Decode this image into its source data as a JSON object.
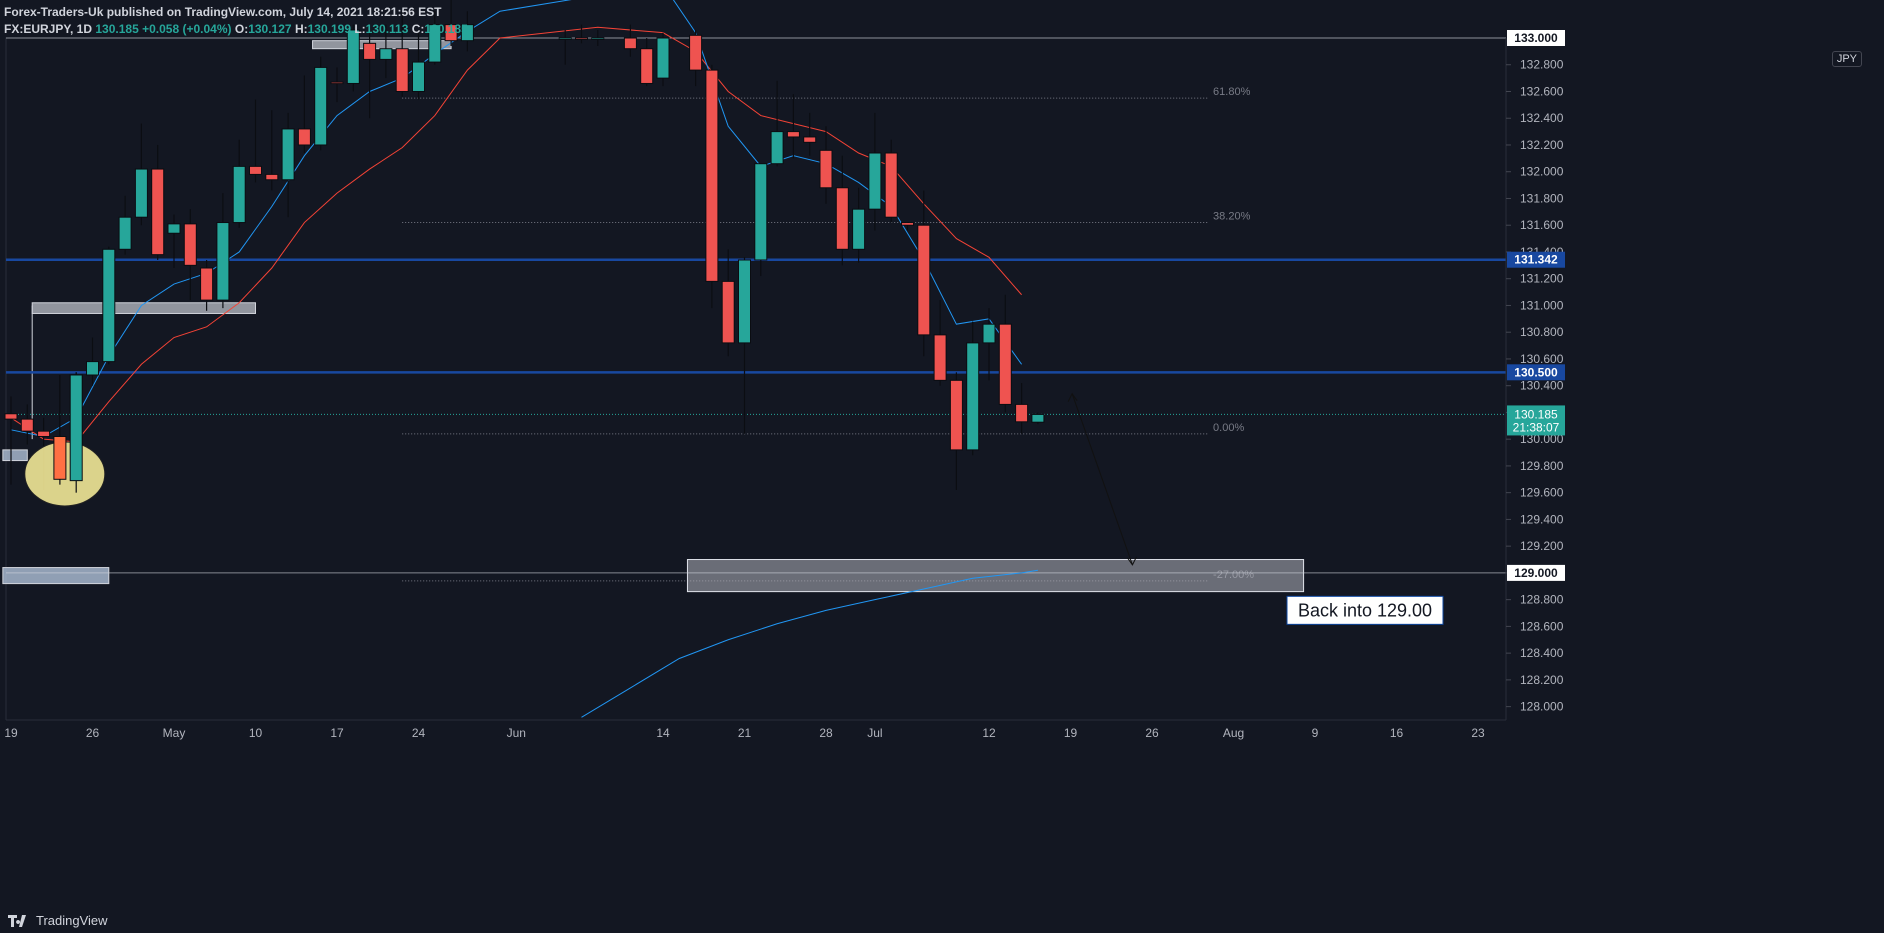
{
  "header": {
    "line1": "Forex-Traders-Uk published on TradingView.com, July 14, 2021 18:21:56 EST",
    "symbol": "FX:EURJPY, 1D",
    "last": "130.185",
    "change": "+0.058 (+0.04%)",
    "o_label": "O:",
    "o": "130.127",
    "h_label": "H:",
    "h": "130.199",
    "l_label": "L:",
    "l": "130.113",
    "c_label": "C:",
    "c": "130.185"
  },
  "currency_badge": "JPY",
  "footer": {
    "brand": "TradingView"
  },
  "colors": {
    "bg": "#131722",
    "up": "#26a69a",
    "down": "#ef5350",
    "grid": "#2a2e39",
    "ema_fast": "#2196f3",
    "ema_slow": "#f44336",
    "sma_long": "#2196f3",
    "level": "#0d47a1",
    "zone": "#b2b5be"
  },
  "chart_data": {
    "type": "candlestick",
    "symbol": "FX:EURJPY",
    "timeframe": "1D",
    "ylim": [
      127.9,
      133.0
    ],
    "y_ticks": [
      "128.000",
      "128.200",
      "128.400",
      "128.600",
      "128.800",
      "129.000",
      "129.200",
      "129.400",
      "129.600",
      "129.800",
      "130.000",
      "130.200",
      "130.400",
      "130.600",
      "130.800",
      "131.000",
      "131.200",
      "131.400",
      "131.600",
      "131.800",
      "132.000",
      "132.200",
      "132.400",
      "132.600",
      "132.800"
    ],
    "x_labels": [
      {
        "i": 0,
        "label": "19"
      },
      {
        "i": 5,
        "label": "26"
      },
      {
        "i": 10,
        "label": "May"
      },
      {
        "i": 15,
        "label": "10"
      },
      {
        "i": 20,
        "label": "17"
      },
      {
        "i": 25,
        "label": "24"
      },
      {
        "i": 31,
        "label": "Jun"
      },
      {
        "i": 40,
        "label": "14"
      },
      {
        "i": 45,
        "label": "21"
      },
      {
        "i": 50,
        "label": "28"
      },
      {
        "i": 53,
        "label": "Jul"
      },
      {
        "i": 60,
        "label": "12"
      },
      {
        "i": 65,
        "label": "19"
      },
      {
        "i": 70,
        "label": "26"
      },
      {
        "i": 75,
        "label": "Aug"
      },
      {
        "i": 80,
        "label": "9"
      },
      {
        "i": 85,
        "label": "16"
      },
      {
        "i": 90,
        "label": "23"
      }
    ],
    "candles": [
      {
        "i": 0,
        "o": 130.19,
        "h": 130.32,
        "l": 129.66,
        "c": 130.15
      },
      {
        "i": 1,
        "o": 130.15,
        "h": 130.26,
        "l": 129.96,
        "c": 130.06
      },
      {
        "i": 2,
        "o": 130.06,
        "h": 130.16,
        "l": 129.62,
        "c": 130.02
      },
      {
        "i": 3,
        "o": 130.02,
        "h": 130.48,
        "l": 129.66,
        "c": 129.7
      },
      {
        "i": 4,
        "o": 129.69,
        "h": 130.5,
        "l": 129.6,
        "c": 130.48
      },
      {
        "i": 5,
        "o": 130.48,
        "h": 130.76,
        "l": 130.4,
        "c": 130.58
      },
      {
        "i": 6,
        "o": 130.58,
        "h": 131.44,
        "l": 130.56,
        "c": 131.42
      },
      {
        "i": 7,
        "o": 131.42,
        "h": 131.82,
        "l": 131.38,
        "c": 131.66
      },
      {
        "i": 8,
        "o": 131.66,
        "h": 132.36,
        "l": 131.6,
        "c": 132.02
      },
      {
        "i": 9,
        "o": 132.02,
        "h": 132.2,
        "l": 131.34,
        "c": 131.38
      },
      {
        "i": 10,
        "o": 131.54,
        "h": 131.68,
        "l": 131.28,
        "c": 131.61
      },
      {
        "i": 11,
        "o": 131.61,
        "h": 131.72,
        "l": 131.04,
        "c": 131.3
      },
      {
        "i": 12,
        "o": 131.28,
        "h": 131.34,
        "l": 130.96,
        "c": 131.04
      },
      {
        "i": 13,
        "o": 131.04,
        "h": 131.84,
        "l": 130.98,
        "c": 131.62
      },
      {
        "i": 14,
        "o": 131.62,
        "h": 132.24,
        "l": 131.58,
        "c": 132.04
      },
      {
        "i": 15,
        "o": 132.04,
        "h": 132.54,
        "l": 131.92,
        "c": 131.98
      },
      {
        "i": 16,
        "o": 131.98,
        "h": 132.46,
        "l": 131.86,
        "c": 131.94
      },
      {
        "i": 17,
        "o": 131.94,
        "h": 132.44,
        "l": 131.66,
        "c": 132.32
      },
      {
        "i": 18,
        "o": 132.32,
        "h": 132.72,
        "l": 132.14,
        "c": 132.2
      },
      {
        "i": 19,
        "o": 132.2,
        "h": 132.86,
        "l": 132.16,
        "c": 132.78
      },
      {
        "i": 20,
        "o": 132.67,
        "h": 132.78,
        "l": 132.52,
        "c": 132.66
      },
      {
        "i": 21,
        "o": 132.66,
        "h": 133.1,
        "l": 132.6,
        "c": 133.06
      },
      {
        "i": 22,
        "o": 132.96,
        "h": 133.1,
        "l": 132.4,
        "c": 132.84
      },
      {
        "i": 23,
        "o": 132.84,
        "h": 133.1,
        "l": 132.7,
        "c": 132.92
      },
      {
        "i": 24,
        "o": 132.92,
        "h": 133.2,
        "l": 132.56,
        "c": 132.6
      },
      {
        "i": 25,
        "o": 132.6,
        "h": 133.06,
        "l": 132.54,
        "c": 132.82
      },
      {
        "i": 26,
        "o": 132.82,
        "h": 133.2,
        "l": 132.8,
        "c": 133.1
      },
      {
        "i": 27,
        "o": 133.1,
        "h": 133.3,
        "l": 132.94,
        "c": 132.98
      },
      {
        "i": 28,
        "o": 132.98,
        "h": 133.2,
        "l": 132.9,
        "c": 133.1
      },
      {
        "i": 34,
        "o": 132.99,
        "h": 133.06,
        "l": 132.8,
        "c": 133.0
      },
      {
        "i": 35,
        "o": 133.0,
        "h": 133.1,
        "l": 132.96,
        "c": 132.99
      },
      {
        "i": 36,
        "o": 132.99,
        "h": 133.06,
        "l": 132.94,
        "c": 133.0
      },
      {
        "i": 38,
        "o": 133.0,
        "h": 133.1,
        "l": 132.86,
        "c": 132.92
      },
      {
        "i": 39,
        "o": 132.92,
        "h": 133.0,
        "l": 132.64,
        "c": 132.66
      },
      {
        "i": 40,
        "o": 132.7,
        "h": 133.04,
        "l": 132.64,
        "c": 133.0
      },
      {
        "i": 42,
        "o": 133.02,
        "h": 133.06,
        "l": 132.64,
        "c": 132.76
      },
      {
        "i": 43,
        "o": 132.76,
        "h": 132.8,
        "l": 130.98,
        "c": 131.18
      },
      {
        "i": 44,
        "o": 131.18,
        "h": 131.42,
        "l": 130.62,
        "c": 130.72
      },
      {
        "i": 45,
        "o": 130.72,
        "h": 131.36,
        "l": 130.04,
        "c": 131.34
      },
      {
        "i": 46,
        "o": 131.34,
        "h": 132.06,
        "l": 131.22,
        "c": 132.06
      },
      {
        "i": 47,
        "o": 132.06,
        "h": 132.68,
        "l": 132.04,
        "c": 132.3
      },
      {
        "i": 48,
        "o": 132.3,
        "h": 132.58,
        "l": 132.1,
        "c": 132.26
      },
      {
        "i": 49,
        "o": 132.26,
        "h": 132.44,
        "l": 132.12,
        "c": 132.22
      },
      {
        "i": 50,
        "o": 132.16,
        "h": 132.34,
        "l": 131.76,
        "c": 131.88
      },
      {
        "i": 51,
        "o": 131.88,
        "h": 132.12,
        "l": 131.3,
        "c": 131.42
      },
      {
        "i": 52,
        "o": 131.42,
        "h": 131.88,
        "l": 131.32,
        "c": 131.72
      },
      {
        "i": 53,
        "o": 131.72,
        "h": 132.44,
        "l": 131.56,
        "c": 132.14
      },
      {
        "i": 54,
        "o": 132.14,
        "h": 132.24,
        "l": 131.62,
        "c": 131.66
      },
      {
        "i": 55,
        "o": 131.62,
        "h": 131.62,
        "l": 131.56,
        "c": 131.6
      },
      {
        "i": 56,
        "o": 131.6,
        "h": 131.86,
        "l": 130.62,
        "c": 130.78
      },
      {
        "i": 57,
        "o": 130.78,
        "h": 131.04,
        "l": 130.4,
        "c": 130.44
      },
      {
        "i": 58,
        "o": 130.44,
        "h": 130.5,
        "l": 129.62,
        "c": 129.92
      },
      {
        "i": 59,
        "o": 129.92,
        "h": 130.88,
        "l": 129.88,
        "c": 130.72
      },
      {
        "i": 60,
        "o": 130.72,
        "h": 130.98,
        "l": 130.44,
        "c": 130.86
      },
      {
        "i": 61,
        "o": 130.86,
        "h": 131.08,
        "l": 130.2,
        "c": 130.26
      },
      {
        "i": 62,
        "o": 130.26,
        "h": 130.42,
        "l": 130.04,
        "c": 130.13
      },
      {
        "i": 63,
        "o": 130.127,
        "h": 130.199,
        "l": 130.113,
        "c": 130.185
      }
    ],
    "ema_fast": [
      [
        0,
        130.07
      ],
      [
        2,
        130.02
      ],
      [
        4,
        130.16
      ],
      [
        6,
        130.62
      ],
      [
        8,
        131.0
      ],
      [
        10,
        131.16
      ],
      [
        12,
        131.24
      ],
      [
        14,
        131.4
      ],
      [
        16,
        131.74
      ],
      [
        18,
        132.12
      ],
      [
        20,
        132.42
      ],
      [
        22,
        132.6
      ],
      [
        24,
        132.7
      ],
      [
        26,
        132.88
      ],
      [
        28,
        133.05
      ],
      [
        30,
        133.2
      ],
      [
        40,
        133.4
      ],
      [
        42,
        133.04
      ],
      [
        44,
        132.34
      ],
      [
        46,
        132.04
      ],
      [
        48,
        132.12
      ],
      [
        50,
        132.06
      ],
      [
        52,
        131.92
      ],
      [
        54,
        131.74
      ],
      [
        56,
        131.34
      ],
      [
        58,
        130.86
      ],
      [
        60,
        130.9
      ],
      [
        62,
        130.56
      ]
    ],
    "ema_slow": [
      [
        0,
        130.16
      ],
      [
        2,
        130.0
      ],
      [
        4,
        129.98
      ],
      [
        6,
        130.28
      ],
      [
        8,
        130.56
      ],
      [
        10,
        130.76
      ],
      [
        12,
        130.84
      ],
      [
        14,
        131.02
      ],
      [
        16,
        131.28
      ],
      [
        18,
        131.62
      ],
      [
        20,
        131.84
      ],
      [
        22,
        132.02
      ],
      [
        24,
        132.18
      ],
      [
        26,
        132.42
      ],
      [
        28,
        132.76
      ],
      [
        30,
        133.0
      ],
      [
        36,
        133.08
      ],
      [
        40,
        133.04
      ],
      [
        42,
        132.9
      ],
      [
        44,
        132.6
      ],
      [
        46,
        132.42
      ],
      [
        48,
        132.36
      ],
      [
        50,
        132.3
      ],
      [
        52,
        132.14
      ],
      [
        54,
        132.04
      ],
      [
        56,
        131.76
      ],
      [
        58,
        131.5
      ],
      [
        60,
        131.36
      ],
      [
        62,
        131.08
      ]
    ],
    "sma_long": [
      [
        35,
        127.92
      ],
      [
        38,
        128.14
      ],
      [
        41,
        128.36
      ],
      [
        44,
        128.5
      ],
      [
        47,
        128.62
      ],
      [
        50,
        128.72
      ],
      [
        53,
        128.8
      ],
      [
        56,
        128.88
      ],
      [
        59,
        128.96
      ],
      [
        62,
        129.0
      ],
      [
        63,
        129.02
      ]
    ],
    "horizontal_levels": [
      {
        "price": 131.342,
        "label": "131.342",
        "style": "solid-blue"
      },
      {
        "price": 130.5,
        "label": "130.500",
        "style": "solid-blue"
      },
      {
        "price": 129.0,
        "label": "129.000",
        "style": "thin-white"
      },
      {
        "price": 133.0,
        "label": "133.000",
        "style": "thin-white"
      }
    ],
    "fibonacci": [
      {
        "ratio": "61.80%",
        "price": 132.55
      },
      {
        "ratio": "38.20%",
        "price": 131.62
      },
      {
        "ratio": "0.00%",
        "price": 130.04
      },
      {
        "ratio": "-27.00%",
        "price": 128.94
      }
    ],
    "last_price_label": {
      "price": "130.185",
      "countdown": "21:38:07"
    },
    "zones": [
      {
        "name": "top-zone",
        "from_i": 18.5,
        "to_i": 27,
        "price_top": 132.98,
        "price_bottom": 132.92
      },
      {
        "name": "may-zone",
        "from_i": 1.3,
        "to_i": 15,
        "price_top": 131.02,
        "price_bottom": 130.94
      },
      {
        "name": "left-zone-1",
        "from_i": -0.5,
        "to_i": 1.0,
        "price_top": 129.92,
        "price_bottom": 129.84
      },
      {
        "name": "left-zone-2",
        "from_i": -0.5,
        "to_i": 6.0,
        "price_top": 129.04,
        "price_bottom": 128.92
      },
      {
        "name": "target-zone",
        "from_i": 41.5,
        "to_i": 79.3,
        "price_top": 129.1,
        "price_bottom": 128.86
      }
    ],
    "annotation": {
      "text": "Back into 129.00"
    }
  }
}
